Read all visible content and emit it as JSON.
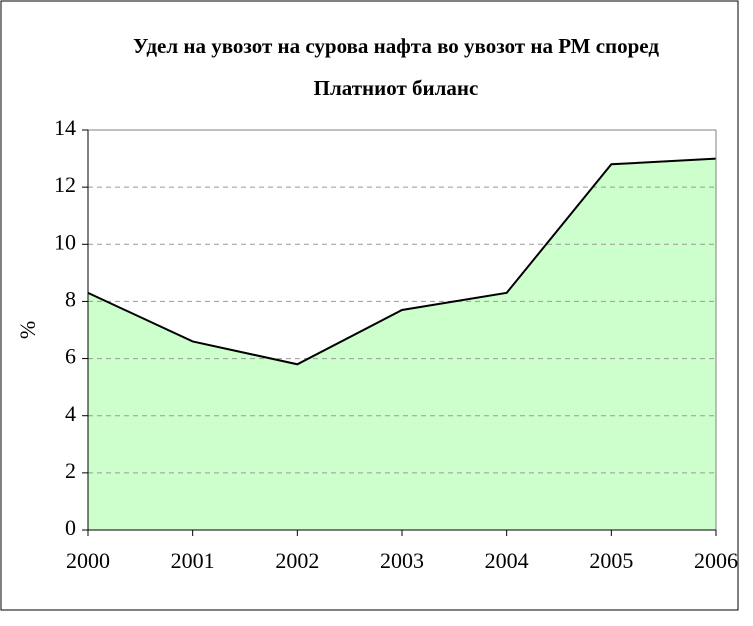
{
  "chart_data": {
    "type": "area",
    "title": [
      "Удел на увозот на сурова нафта  во увозот на РМ  според",
      "Платниот биланс"
    ],
    "ylabel": "%",
    "categories": [
      "2000",
      "2001",
      "2002",
      "2003",
      "2004",
      "2005",
      "2006"
    ],
    "values": [
      8.3,
      6.6,
      5.8,
      7.7,
      8.3,
      12.8,
      13.0
    ],
    "color": "#ccffcc",
    "line_color": "#000000",
    "ylim": [
      0,
      14
    ],
    "yticks": [
      0,
      2,
      4,
      6,
      8,
      10,
      12,
      14
    ],
    "grid": true
  }
}
